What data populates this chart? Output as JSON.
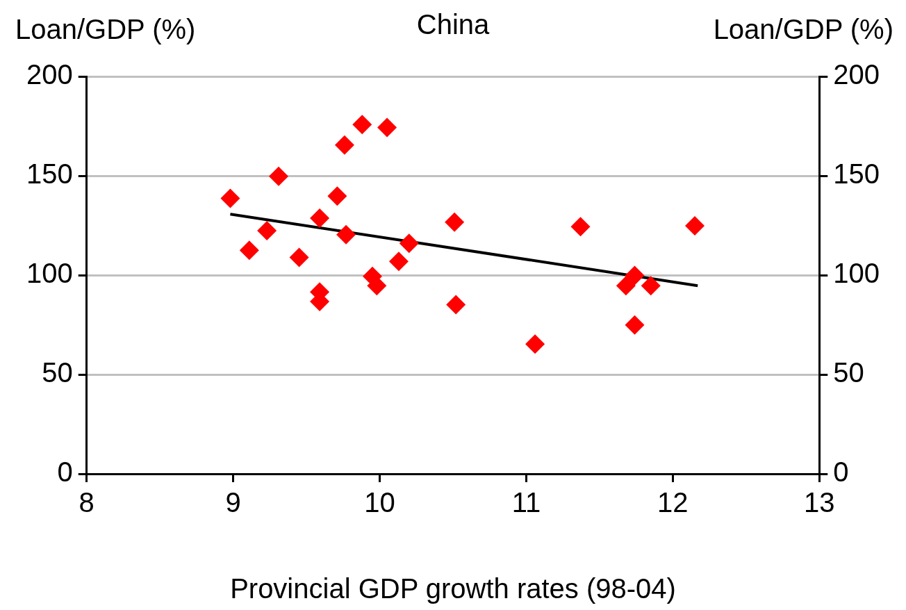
{
  "chart_data": {
    "type": "scatter",
    "title": "China",
    "xlabel": "Provincial GDP growth rates (98-04)",
    "ylabel": "Loan/GDP (%)",
    "y2label": "Loan/GDP (%)",
    "xlim": [
      8,
      13
    ],
    "xticks": [
      8,
      9,
      10,
      11,
      12,
      13
    ],
    "ylim": [
      0,
      200
    ],
    "yticks": [
      0,
      50,
      100,
      150,
      200
    ],
    "y2lim": [
      0,
      200
    ],
    "y2ticks": [
      0,
      50,
      100,
      150,
      200
    ],
    "grid": "y",
    "legend": false,
    "marker": "diamond",
    "series": [
      {
        "color": "#ff0000",
        "x": [
          8.98,
          9.11,
          9.23,
          9.31,
          9.45,
          9.59,
          9.59,
          9.59,
          9.71,
          9.76,
          9.77,
          9.88,
          9.95,
          9.98,
          10.05,
          10.13,
          10.2,
          10.51,
          10.52,
          11.06,
          11.37,
          11.68,
          11.74,
          11.74,
          11.85,
          12.15
        ],
        "values": [
          138.6,
          112.5,
          122.4,
          149.7,
          108.9,
          128.7,
          91.5,
          86.7,
          139.8,
          165.5,
          120.4,
          175.8,
          99.4,
          94.7,
          174.3,
          106.9,
          116,
          126.7,
          85.1,
          65.3,
          124.4,
          94.7,
          99.8,
          74.9,
          94.7,
          124.8
        ]
      },
      {
        "type": "line",
        "color": "#000000",
        "marker": "none",
        "x": [
          8.98,
          12.17
        ],
        "values": [
          130.7,
          94.7
        ]
      }
    ]
  }
}
